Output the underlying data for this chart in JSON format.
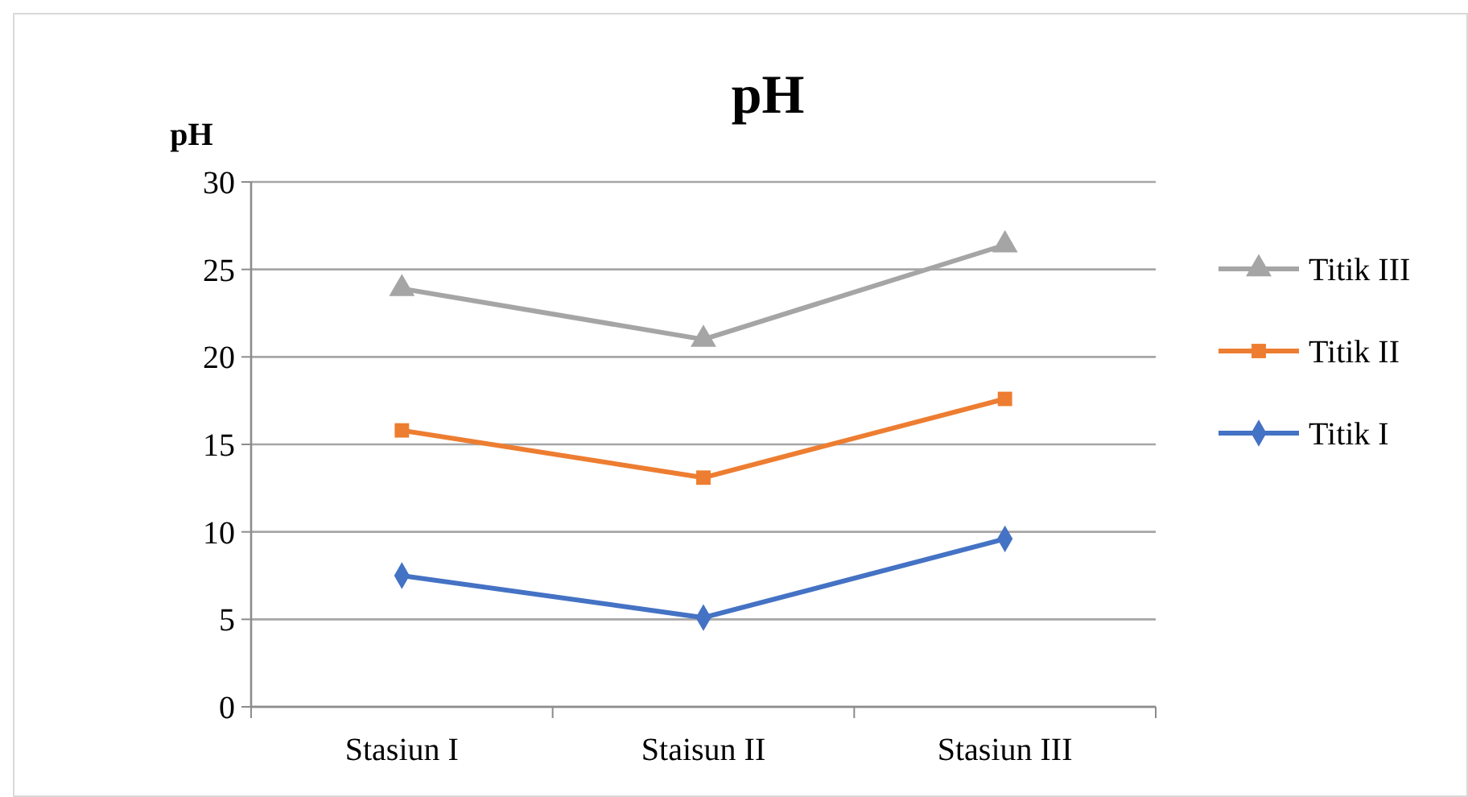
{
  "chart_data": {
    "type": "line",
    "title": "pH",
    "ylabel": "pH",
    "categories": [
      "Stasiun I",
      "Staisun II",
      "Stasiun III"
    ],
    "series": [
      {
        "name": "Titik I",
        "color": "#4472c4",
        "marker": "diamond",
        "values": [
          7.5,
          5.1,
          9.6
        ]
      },
      {
        "name": "Titik II",
        "color": "#ed7d31",
        "marker": "square",
        "values": [
          15.8,
          13.1,
          17.6
        ]
      },
      {
        "name": "Titik III",
        "color": "#a5a5a5",
        "marker": "triangle",
        "values": [
          23.9,
          21.0,
          26.4
        ]
      }
    ],
    "ylim": [
      0,
      30
    ],
    "yticks": [
      0,
      5,
      10,
      15,
      20,
      25,
      30
    ],
    "grid": "y",
    "legend": "right",
    "line_style": "solid"
  }
}
